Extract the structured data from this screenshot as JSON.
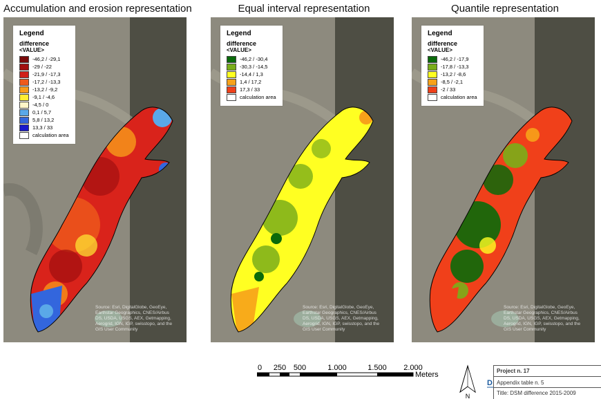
{
  "maps": [
    {
      "title": "Accumulation and erosion representation",
      "legend": {
        "title": "Legend",
        "subtitle": "difference",
        "field": "<VALUE>",
        "items": [
          {
            "label": "-46,2 / -29,1",
            "color": "#7a0a0a"
          },
          {
            "label": "-29 / -22",
            "color": "#a31010"
          },
          {
            "label": "-21,9 / -17,3",
            "color": "#d0201a"
          },
          {
            "label": "-17,2 / -13,3",
            "color": "#ee5a1c"
          },
          {
            "label": "-13,2 / -9,2",
            "color": "#f89b1a"
          },
          {
            "label": "-9,1 / -4,6",
            "color": "#ffee33"
          },
          {
            "label": "-4,5 / 0",
            "color": "#fff6c8"
          },
          {
            "label": "0,1 / 5,7",
            "color": "#5aa8e8"
          },
          {
            "label": "5,8 / 13,2",
            "color": "#3366dd"
          },
          {
            "label": "13,3 / 33",
            "color": "#1a1acc"
          },
          {
            "label": "calculation area",
            "color": "#ffffff"
          }
        ]
      },
      "attribution": "Source: Esri, DigitalGlobe, GeoEye, Earthstar Geographics, CNES/Airbus DS, USDA, USGS, AEX, Getmapping, Aerogrid, IGN, IGP, swisstopo, and the GIS User Community"
    },
    {
      "title": "Equal interval representation",
      "legend": {
        "title": "Legend",
        "subtitle": "difference",
        "field": "<VALUE>",
        "items": [
          {
            "label": "-46,2 / -30,4",
            "color": "#0a6a0a"
          },
          {
            "label": "-30,3 / -14,5",
            "color": "#7aae1a"
          },
          {
            "label": "-14,4 / 1,3",
            "color": "#ffff22"
          },
          {
            "label": "1,4 / 17,2",
            "color": "#f7a21a"
          },
          {
            "label": "17,3 / 33",
            "color": "#f0401a"
          },
          {
            "label": "calculation area",
            "color": "#ffffff"
          }
        ]
      },
      "attribution": "Source: Esri, DigitalGlobe, GeoEye, Earthstar Geographics, CNES/Airbus DS, USDA, USGS, AEX, Getmapping, Aerogrid, IGN, IGP, swisstopo, and the GIS User Community"
    },
    {
      "title": "Quantile representation",
      "legend": {
        "title": "Legend",
        "subtitle": "difference",
        "field": "<VALUE>",
        "items": [
          {
            "label": "-46,2 / -17,9",
            "color": "#0a6a0a"
          },
          {
            "label": "-17,8 / -13,3",
            "color": "#7aae1a"
          },
          {
            "label": "-13,2 / -8,6",
            "color": "#ffff22"
          },
          {
            "label": "-8,5 / -2,1",
            "color": "#f7a21a"
          },
          {
            "label": "-2 / 33",
            "color": "#f0401a"
          },
          {
            "label": "calculation area",
            "color": "#ffffff"
          }
        ]
      },
      "attribution": "Source: Esri, DigitalGlobe, GeoEye, Earthstar Geographics, CNES/Airbus DS, USDA, USGS, AEX, Getmapping, Aerogrid, IGN, IGP, swisstopo, and the GIS User Community"
    }
  ],
  "scalebar": {
    "ticks": [
      "0",
      "250",
      "500",
      "1.000",
      "1.500",
      "2.000"
    ],
    "unit": "Meters"
  },
  "north_arrow": {
    "label": "N"
  },
  "title_block": {
    "logo_text": "DREAM",
    "project": "Project n. 17",
    "appendix": "Appendix table n. 5",
    "title": "Title: DSM difference 2015-2009"
  },
  "colors": {
    "terrain": "#8d8a7e",
    "dark_strip": "#3a3a32"
  }
}
